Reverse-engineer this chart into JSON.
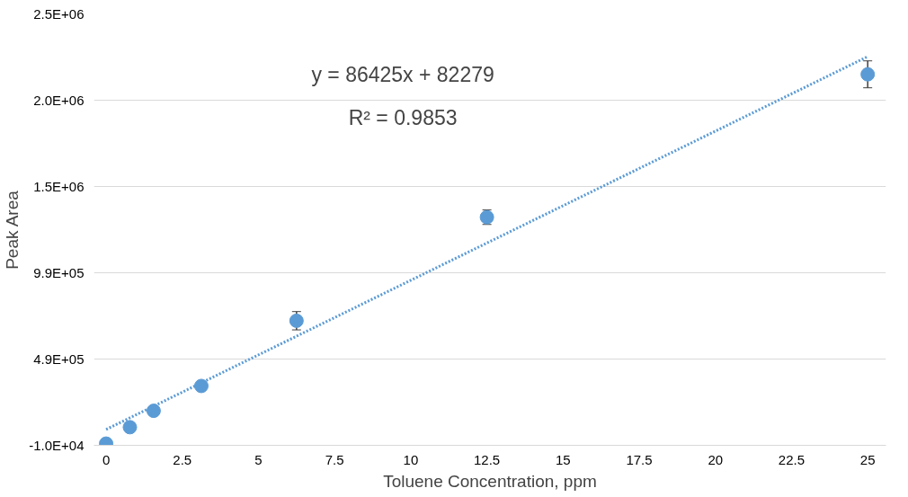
{
  "chart_data": {
    "type": "scatter",
    "xlabel": "Toluene Concentration, ppm",
    "ylabel": "Peak Area",
    "x": [
      0,
      0.78,
      1.56,
      3.125,
      6.25,
      12.5,
      25
    ],
    "series": [
      {
        "color": "#5b9bd5",
        "values": [
          0,
          95000,
          190000,
          334000,
          712000,
          1312000,
          2140000
        ],
        "errors": [
          null,
          null,
          null,
          null,
          53000,
          42000,
          78000
        ]
      },
      {
        "type": "line",
        "color": "#5b9bd5",
        "x": [
          0,
          25
        ],
        "values": [
          82000,
          2243000
        ],
        "line_style": "dotted",
        "marker": "none"
      }
    ],
    "annotations": [
      "y = 86425x + 82279",
      "R² = 0.9853"
    ],
    "xlim": [
      -0.4,
      25.6
    ],
    "xticks": [
      0,
      2.5,
      5,
      7.5,
      10,
      12.5,
      15,
      17.5,
      20,
      22.5,
      25
    ],
    "ylim": [
      -10000,
      2490000
    ],
    "yticks": [
      {
        "value": -10000,
        "label": "-1.0E+04"
      },
      {
        "value": 490000,
        "label": "4.9E+05"
      },
      {
        "value": 990000,
        "label": "9.9E+05"
      },
      {
        "value": 1490000,
        "label": "1.5E+06"
      },
      {
        "value": 1990000,
        "label": "2.0E+06"
      },
      {
        "value": 2490000,
        "label": "2.5E+06"
      }
    ],
    "grid": "y",
    "marker": "circle"
  }
}
